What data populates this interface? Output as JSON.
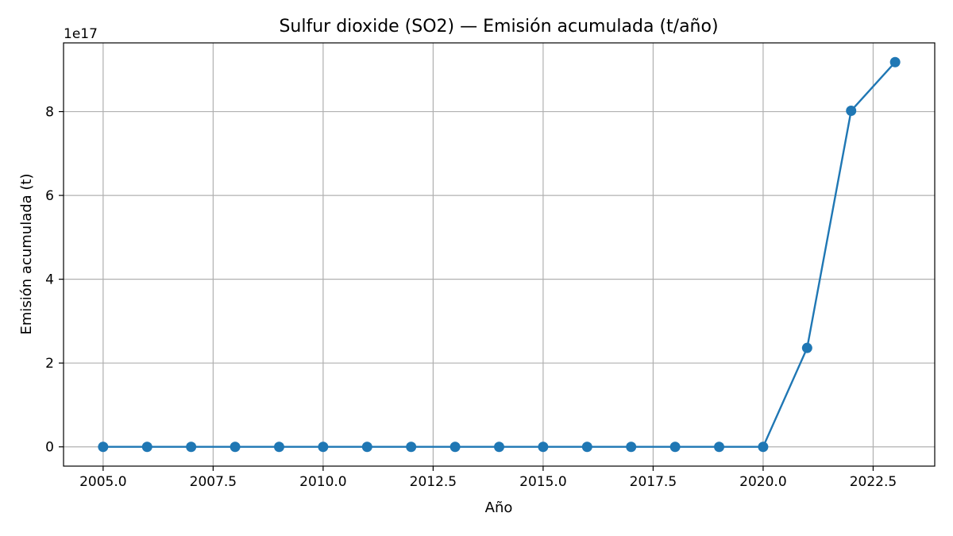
{
  "chart_data": {
    "type": "line",
    "title": "Sulfur dioxide (SO2) — Emisión acumulada (t/año)",
    "xlabel": "Año",
    "ylabel": "Emisión acumulada (t)",
    "y_offset_label": "1e17",
    "xlim": [
      2004.1,
      2023.9
    ],
    "ylim": [
      -0.46,
      9.64
    ],
    "y_scale_exponent": 17,
    "x_ticks": [
      2005.0,
      2007.5,
      2010.0,
      2012.5,
      2015.0,
      2017.5,
      2020.0,
      2022.5
    ],
    "x_tick_labels": [
      "2005.0",
      "2007.5",
      "2010.0",
      "2012.5",
      "2015.0",
      "2017.5",
      "2020.0",
      "2022.5"
    ],
    "y_ticks": [
      0,
      2,
      4,
      6,
      8
    ],
    "y_tick_labels": [
      "0",
      "2",
      "4",
      "6",
      "8"
    ],
    "grid": true,
    "series": [
      {
        "color": "#1f77b4",
        "marker": "circle",
        "x": [
          2005,
          2006,
          2007,
          2008,
          2009,
          2010,
          2011,
          2012,
          2013,
          2014,
          2015,
          2016,
          2017,
          2018,
          2019,
          2020,
          2021,
          2022,
          2023
        ],
        "y": [
          0,
          0,
          0,
          0,
          0,
          0,
          0,
          0,
          0,
          0,
          0,
          0,
          0,
          0,
          0,
          0,
          2.36,
          8.02,
          9.18
        ]
      }
    ]
  }
}
